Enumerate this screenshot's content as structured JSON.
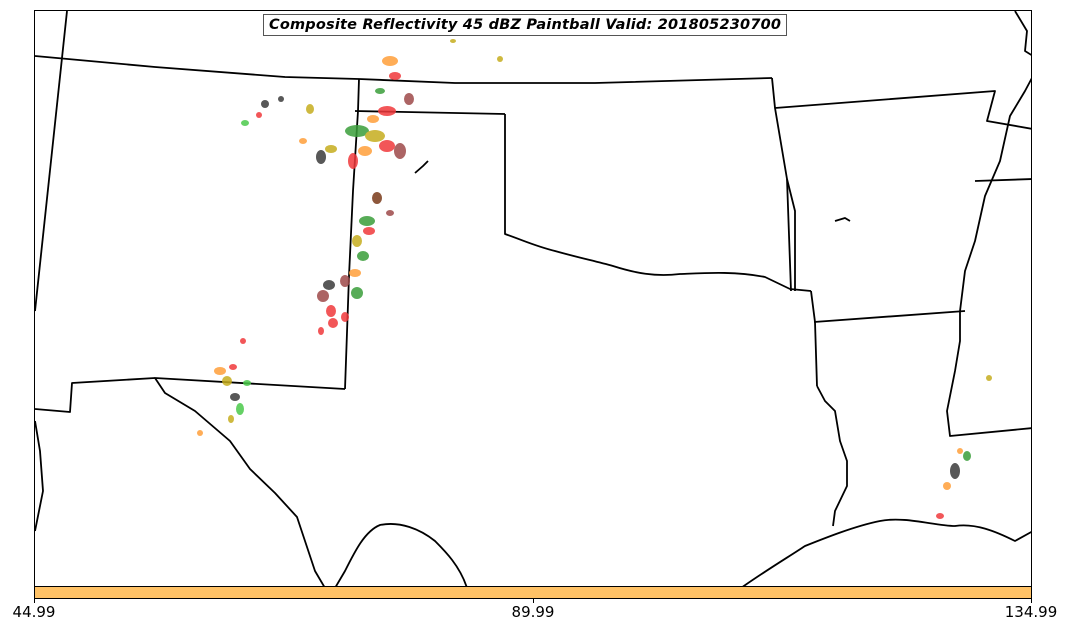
{
  "title": "Composite Reflectivity 45 dBZ Paintball Valid: 201805230700",
  "colorbar": {
    "color": "#ffc266",
    "ticks": [
      "44.99",
      "89.99",
      "134.99"
    ]
  },
  "map": {
    "region": "Southern Plains / South-Central United States",
    "boundaries": "state borders and coastline",
    "paintball_colors": [
      "#f0393c",
      "#ff9f3a",
      "#3a9e3a",
      "#c6ad1e",
      "#3b3b3b",
      "#7a3a1a",
      "#9e4a4a",
      "#4bc94b"
    ]
  }
}
